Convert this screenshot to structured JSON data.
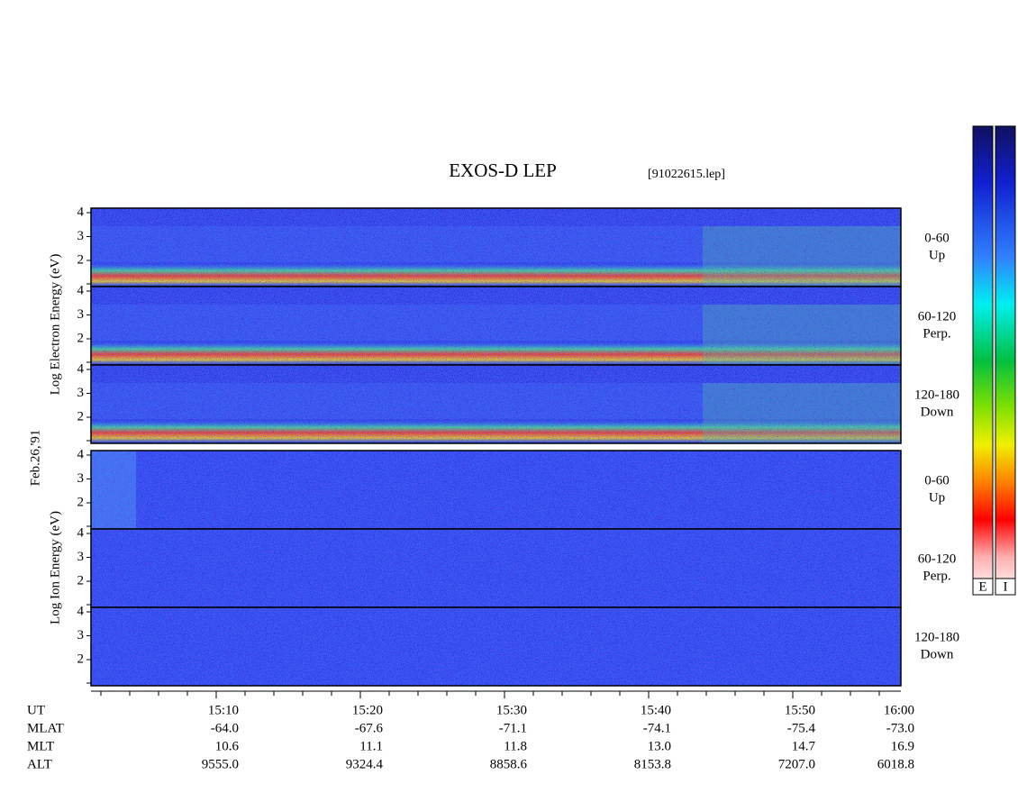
{
  "title": "EXOS-D LEP",
  "filename": "[91022615.lep]",
  "date": "Feb.26,'91",
  "electron_label": "Log Electron Energy (eV)",
  "ion_label": "Log Ion Energy (eV)",
  "energy_ticks": [
    "4",
    "3",
    "2"
  ],
  "electron_panels": [
    {
      "angle": "0-60",
      "direction": "Up"
    },
    {
      "angle": "60-120",
      "direction": "Perp."
    },
    {
      "angle": "120-180",
      "direction": "Down"
    }
  ],
  "ion_panels": [
    {
      "angle": "0-60",
      "direction": "Up"
    },
    {
      "angle": "60-120",
      "direction": "Perp."
    },
    {
      "angle": "120-180",
      "direction": "Down"
    }
  ],
  "axis_rows": [
    {
      "name": "UT",
      "values": [
        "15:10",
        "15:20",
        "15:30",
        "15:40",
        "15:50",
        "16:00"
      ]
    },
    {
      "name": "MLAT",
      "values": [
        "-64.0",
        "-67.6",
        "-71.1",
        "-74.1",
        "-75.4",
        "-73.0"
      ]
    },
    {
      "name": "MLT",
      "values": [
        "10.6",
        "11.1",
        "11.8",
        "13.0",
        "14.7",
        "16.9"
      ]
    },
    {
      "name": "ALT",
      "values": [
        "9555.0",
        "9324.4",
        "8858.6",
        "8153.8",
        "7207.0",
        "6018.8"
      ]
    }
  ],
  "colorbar_labels": [
    "E",
    "I"
  ]
}
